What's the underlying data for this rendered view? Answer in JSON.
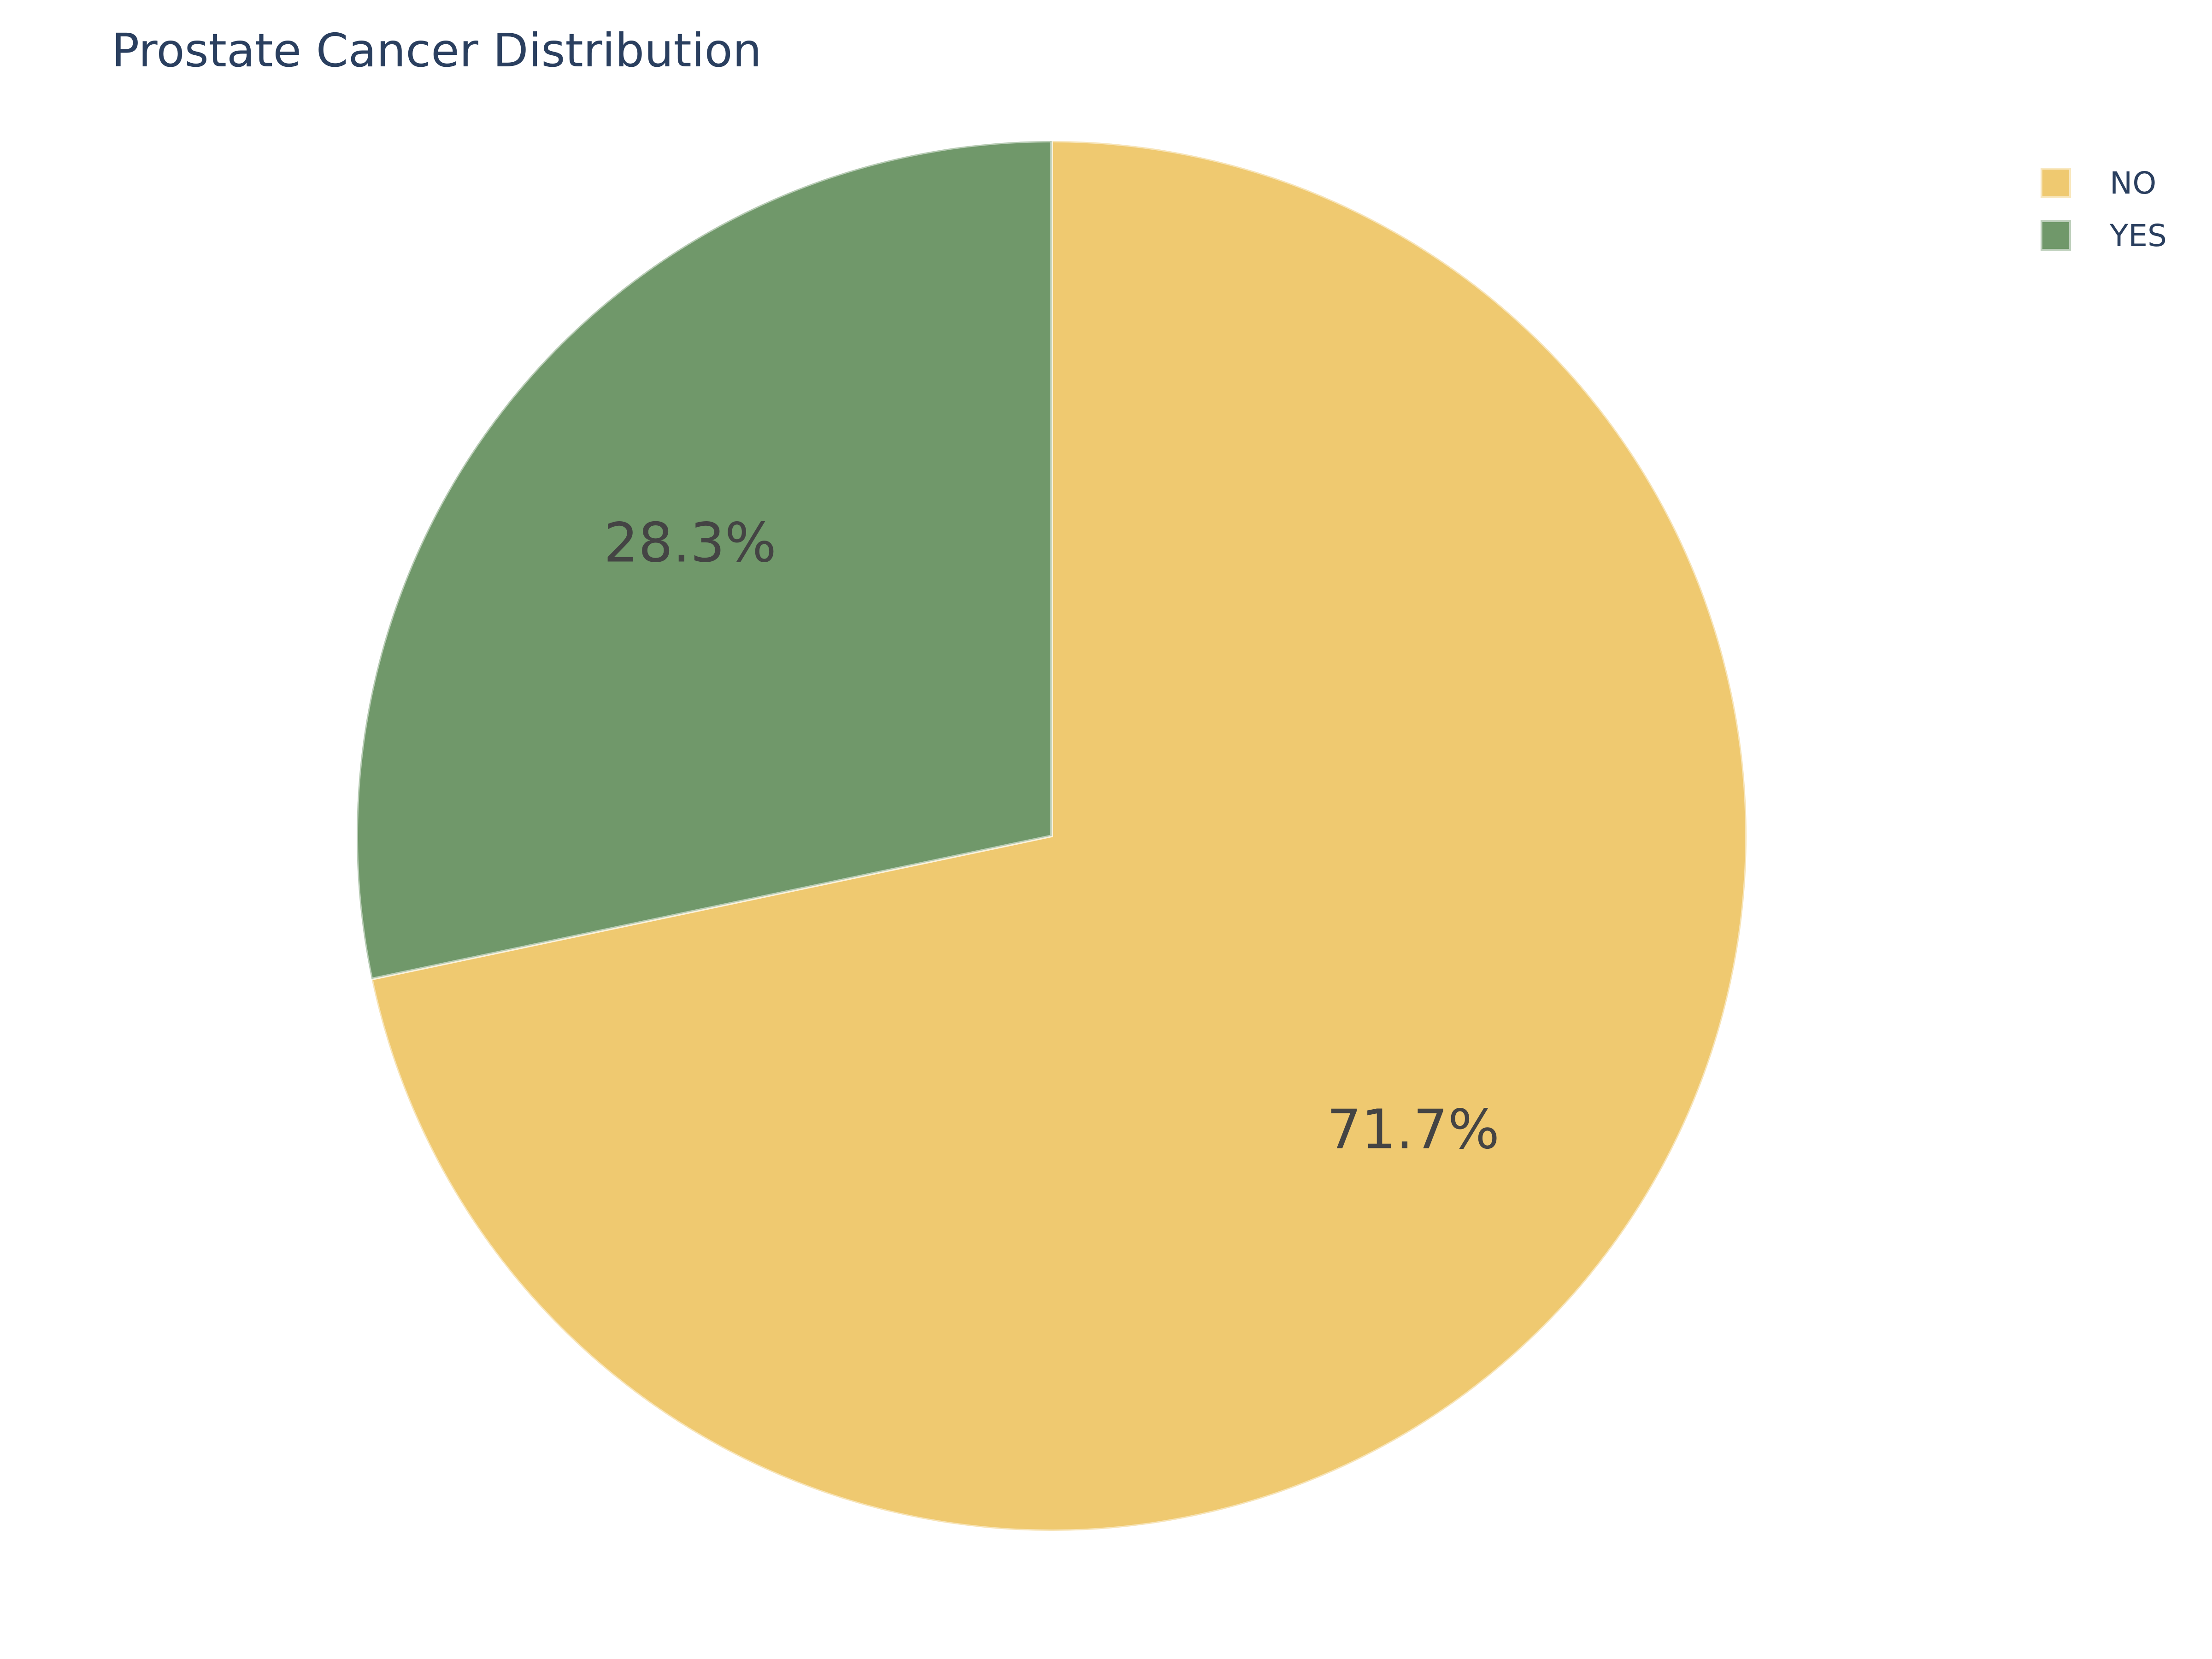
{
  "chart_data": {
    "type": "pie",
    "title": "Prostate Cancer Distribution",
    "labels": [
      "NO",
      "YES"
    ],
    "values": [
      71.7,
      28.3
    ],
    "display_labels": [
      "71.7%",
      "28.3%"
    ],
    "colors": [
      "#efc970",
      "#70986a"
    ],
    "direction": "clockwise",
    "start_angle": "12 o'clock",
    "legend_position": "top-right"
  }
}
